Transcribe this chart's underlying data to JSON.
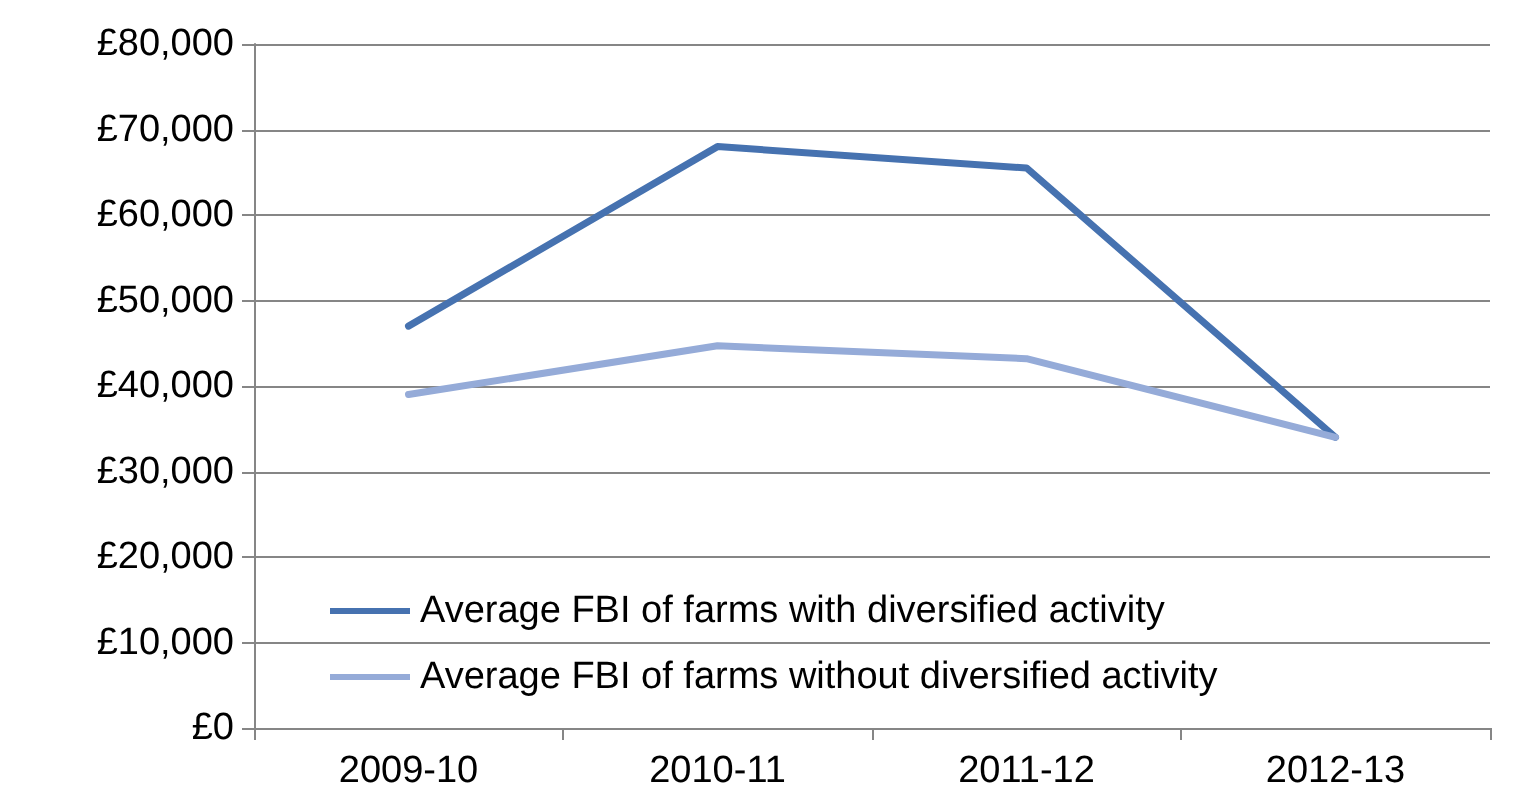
{
  "chart_data": {
    "type": "line",
    "categories": [
      "2009-10",
      "2010-11",
      "2011-12",
      "2012-13"
    ],
    "series": [
      {
        "name": "Average FBI of farms with diversified activity",
        "color": "#4672b0",
        "values": [
          47000,
          68000,
          65500,
          34000
        ]
      },
      {
        "name": "Average FBI of farms without diversified activity",
        "color": "#95abd8",
        "values": [
          39000,
          44700,
          43200,
          34000
        ]
      }
    ],
    "ylim": [
      0,
      80000
    ],
    "yticks": [
      {
        "value": 0,
        "label": "£0"
      },
      {
        "value": 10000,
        "label": "£10,000"
      },
      {
        "value": 20000,
        "label": "£20,000"
      },
      {
        "value": 30000,
        "label": "£30,000"
      },
      {
        "value": 40000,
        "label": "£40,000"
      },
      {
        "value": 50000,
        "label": "£50,000"
      },
      {
        "value": 60000,
        "label": "£60,000"
      },
      {
        "value": 70000,
        "label": "£70,000"
      },
      {
        "value": 80000,
        "label": "£80,000"
      }
    ],
    "grid": "y",
    "legend": "bottom left",
    "marker": "none",
    "line_style": "solid"
  }
}
